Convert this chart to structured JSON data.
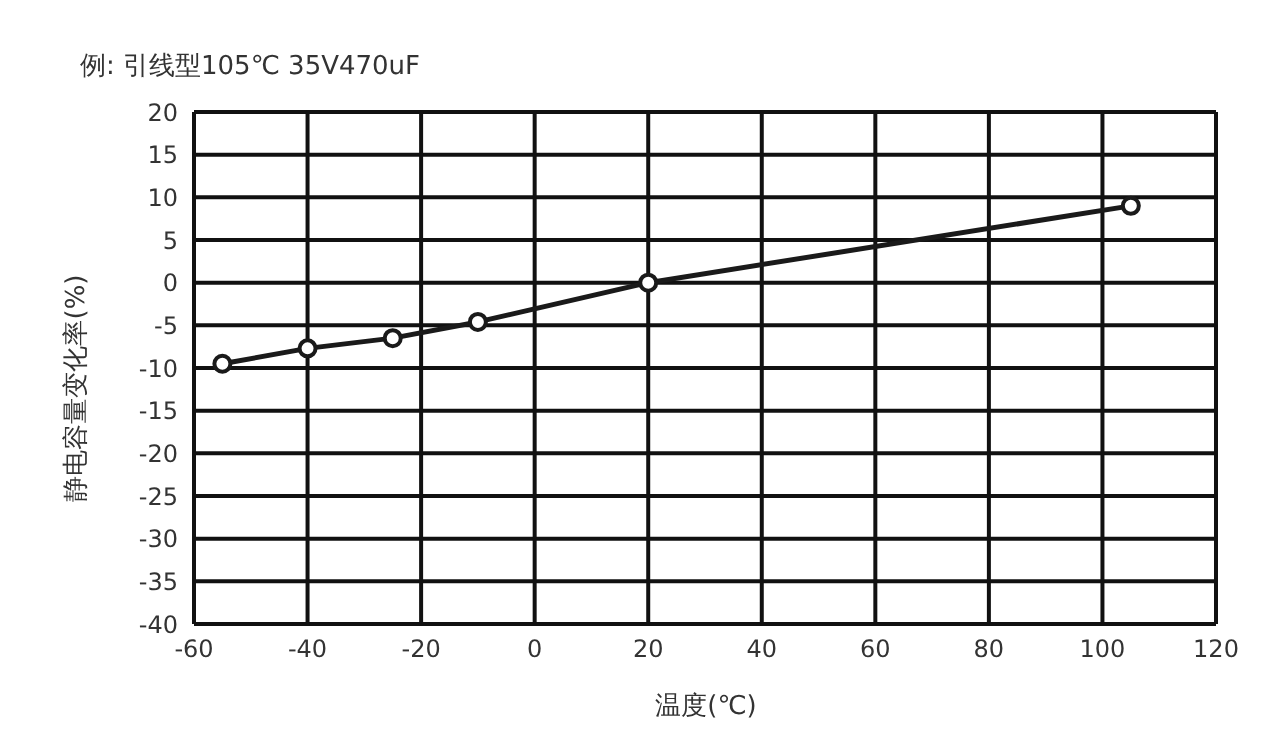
{
  "chart_data": {
    "type": "line",
    "title": "例: 引线型105℃ 35V470uF",
    "xlabel": "温度(℃)",
    "ylabel": "静电容量变化率(%)",
    "x": [
      -55,
      -40,
      -25,
      -10,
      20,
      105
    ],
    "series": [
      {
        "color": "#1a1a1a",
        "values": [
          -9.5,
          -7.7,
          -6.5,
          -4.6,
          0,
          9
        ]
      }
    ],
    "xlim": [
      -60,
      120
    ],
    "xticks": [
      -60,
      -40,
      -20,
      0,
      20,
      40,
      60,
      80,
      100,
      120
    ],
    "ylim": [
      -40,
      20
    ],
    "yticks": [
      20,
      15,
      10,
      5,
      0,
      -5,
      -10,
      -15,
      -20,
      -25,
      -30,
      -35,
      -40
    ],
    "grid": true,
    "marker": "circle",
    "line_style": "solid"
  }
}
